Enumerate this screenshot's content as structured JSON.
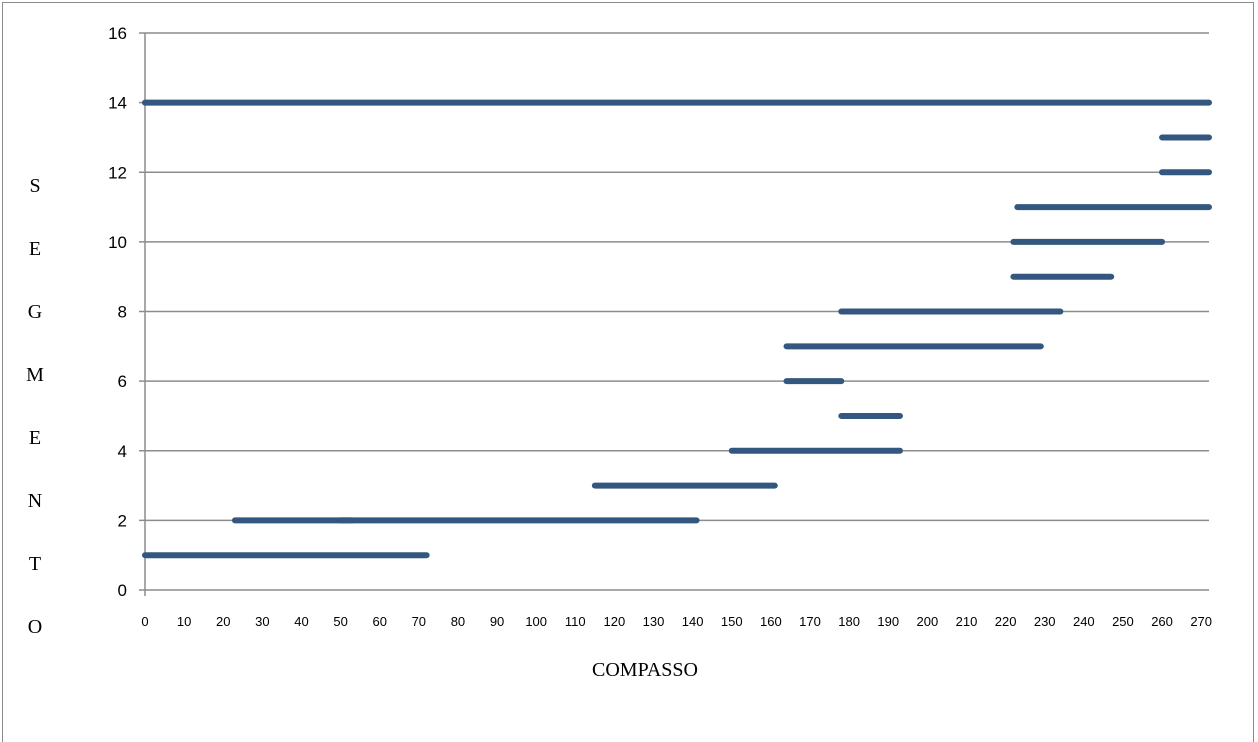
{
  "chart_data": {
    "type": "bar",
    "subtype": "horizontal-ranges",
    "title": "",
    "xlabel": "COMPASSO",
    "ylabel": "SEGMENTO",
    "xlim": [
      0,
      272
    ],
    "ylim": [
      0,
      16
    ],
    "xticks": [
      0,
      10,
      20,
      30,
      40,
      50,
      60,
      70,
      80,
      90,
      100,
      110,
      120,
      130,
      140,
      150,
      160,
      170,
      180,
      190,
      200,
      210,
      220,
      230,
      240,
      250,
      260,
      270
    ],
    "yticks": [
      0,
      2,
      4,
      6,
      8,
      10,
      12,
      14,
      16
    ],
    "grid": "horizontal",
    "legend": "none",
    "color": "#34577f",
    "segments": [
      {
        "y": 1,
        "x_start": 0,
        "x_end": 72
      },
      {
        "y": 2,
        "x_start": 23,
        "x_end": 53
      },
      {
        "y": 2,
        "x_start": 50,
        "x_end": 141
      },
      {
        "y": 3,
        "x_start": 115,
        "x_end": 161
      },
      {
        "y": 4,
        "x_start": 150,
        "x_end": 193
      },
      {
        "y": 5,
        "x_start": 178,
        "x_end": 193
      },
      {
        "y": 6,
        "x_start": 164,
        "x_end": 178
      },
      {
        "y": 7,
        "x_start": 164,
        "x_end": 229
      },
      {
        "y": 8,
        "x_start": 178,
        "x_end": 234
      },
      {
        "y": 9,
        "x_start": 222,
        "x_end": 247
      },
      {
        "y": 10,
        "x_start": 222,
        "x_end": 260
      },
      {
        "y": 11,
        "x_start": 223,
        "x_end": 272
      },
      {
        "y": 12,
        "x_start": 260,
        "x_end": 272
      },
      {
        "y": 13,
        "x_start": 260,
        "x_end": 272
      },
      {
        "y": 14,
        "x_start": 0,
        "x_end": 272
      }
    ]
  }
}
